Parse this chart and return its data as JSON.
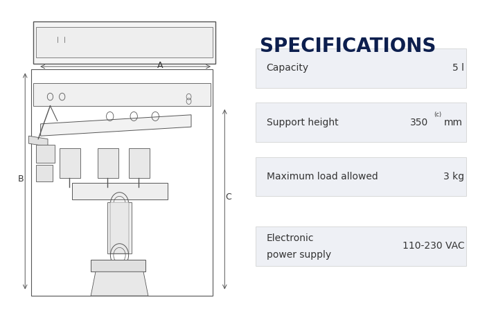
{
  "bg_color": "#ffffff",
  "title": "SPECIFICATIONS",
  "title_color": "#0d1f4e",
  "title_fontsize": 20,
  "specs": [
    {
      "label": "Capacity",
      "value": "5 l",
      "superscript": null,
      "unit": ""
    },
    {
      "label": "Support height",
      "value": "350",
      "superscript": "(c)",
      "unit": "mm"
    },
    {
      "label": "Maximum load allowed",
      "value": "3 kg",
      "superscript": null,
      "unit": ""
    },
    {
      "label": "Electronic\npower supply",
      "value": "110-230 VAC",
      "superscript": null,
      "unit": ""
    }
  ],
  "row_bg": "#eef0f5",
  "row_border": "#cccccc",
  "row_text_color": "#333333",
  "label_fontsize": 10,
  "value_fontsize": 10,
  "dim_label_color": "#333333"
}
